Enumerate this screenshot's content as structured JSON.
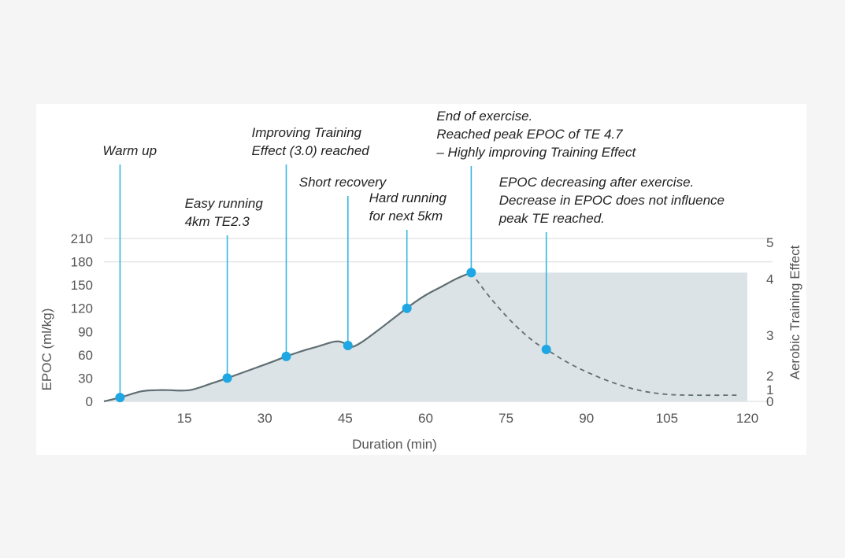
{
  "chart_data": {
    "type": "area",
    "xlabel": "Duration (min)",
    "ylabel": "EPOC (ml/kg)",
    "y2label": "Aerobic Training Effect",
    "xticks": [
      15,
      30,
      45,
      60,
      75,
      90,
      105,
      120
    ],
    "xlim": [
      0,
      120
    ],
    "yticks": [
      0,
      30,
      60,
      90,
      120,
      150,
      180,
      210
    ],
    "ylim": [
      0,
      210
    ],
    "y2ticks": [
      {
        "label": "0",
        "epoc": 0
      },
      {
        "label": "1",
        "epoc": 15
      },
      {
        "label": "2",
        "epoc": 33
      },
      {
        "label": "3",
        "epoc": 85
      },
      {
        "label": "4",
        "epoc": 158
      },
      {
        "label": "5",
        "epoc": 205
      }
    ],
    "gridlines_y": [
      0,
      180,
      210
    ],
    "series": [
      {
        "style": "solid",
        "x": [
          0,
          3,
          7,
          10,
          12,
          16,
          20,
          23,
          27,
          31,
          34,
          37,
          40,
          43,
          44.5,
          46,
          48,
          51,
          54,
          57,
          60,
          63,
          66,
          68.5
        ],
        "y": [
          0,
          5,
          13,
          14.5,
          14.5,
          14.5,
          23,
          30,
          40,
          50,
          58,
          65,
          71,
          77,
          76,
          70,
          76,
          91,
          107,
          123,
          137,
          148,
          159,
          166
        ]
      },
      {
        "style": "dashed",
        "x": [
          68.5,
          72,
          76,
          80,
          83,
          86,
          90,
          95,
          100,
          105,
          110,
          118
        ],
        "y": [
          166,
          134,
          103,
          78,
          65,
          52,
          38,
          24,
          14,
          9,
          8,
          8
        ]
      }
    ],
    "plateau": {
      "x_start": 68.5,
      "x_end": 120,
      "y": 166
    },
    "annotations": [
      {
        "x": 3,
        "y": 5,
        "lines": [
          "Warm up"
        ]
      },
      {
        "x": 23,
        "y": 30,
        "lines": [
          "Easy running",
          "4km TE2.3"
        ]
      },
      {
        "x": 34,
        "y": 58,
        "lines": [
          "Improving Training",
          "Effect (3.0) reached"
        ]
      },
      {
        "x": 45.5,
        "y": 72,
        "lines": [
          "Short recovery"
        ]
      },
      {
        "x": 56.5,
        "y": 120,
        "lines": [
          "Hard running",
          "for next 5km"
        ]
      },
      {
        "x": 68.5,
        "y": 166,
        "lines": [
          "End of exercise.",
          "Reached peak EPOC of TE 4.7",
          "– Highly improving Training Effect"
        ]
      },
      {
        "x": 82.5,
        "y": 67,
        "lines": [
          "EPOC decreasing after exercise.",
          "Decrease in EPOC does not influence",
          "peak TE reached."
        ]
      }
    ],
    "colors": {
      "line": "#5f6f73",
      "fill": "#dce3e6",
      "marker": "#1ea7e2",
      "leader": "#37b5e3",
      "grid": "#e6e6e6"
    }
  }
}
